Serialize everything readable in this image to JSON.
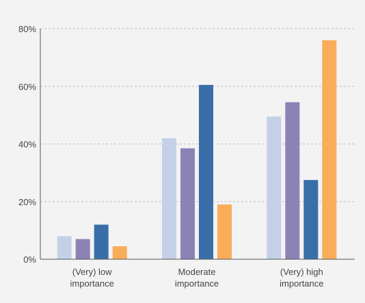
{
  "chart_data": {
    "type": "bar",
    "categories": [
      [
        "(Very) low",
        "importance"
      ],
      [
        "Moderate",
        "importance"
      ],
      [
        "(Very) high",
        "importance"
      ]
    ],
    "series": [
      {
        "values": [
          8,
          42,
          49.5
        ],
        "color": "#c5d0e8"
      },
      {
        "values": [
          7,
          38.5,
          54.5
        ],
        "color": "#8b83b6"
      },
      {
        "values": [
          12,
          60.5,
          27.5
        ],
        "color": "#3a6ea8"
      },
      {
        "values": [
          4.5,
          19,
          76
        ],
        "color": "#f9ad5a"
      }
    ],
    "ylim": [
      0,
      80
    ],
    "yticks": [
      0,
      20,
      40,
      60,
      80
    ],
    "ytick_labels": [
      "0%",
      "20%",
      "40%",
      "60%",
      "80%"
    ],
    "grid": true,
    "legend": "none"
  }
}
